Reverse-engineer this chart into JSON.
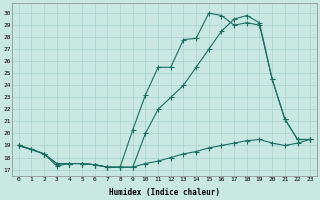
{
  "xlabel": "Humidex (Indice chaleur)",
  "x_ticks": [
    0,
    1,
    2,
    3,
    4,
    5,
    6,
    7,
    8,
    9,
    10,
    11,
    12,
    13,
    14,
    15,
    16,
    17,
    18,
    19,
    20,
    21,
    22,
    23
  ],
  "y_ticks": [
    17,
    18,
    19,
    20,
    21,
    22,
    23,
    24,
    25,
    26,
    27,
    28,
    29,
    30
  ],
  "ylim": [
    16.5,
    30.8
  ],
  "xlim": [
    -0.5,
    23.5
  ],
  "bg_color": "#c9e8e1",
  "grid_color": "#a8d4cc",
  "line_color": "#1a6e62",
  "line1_x": [
    0,
    1,
    2,
    3,
    4,
    5,
    6,
    7,
    8,
    9,
    10,
    11,
    12,
    13,
    14,
    15,
    16,
    17,
    18,
    19,
    20,
    21,
    22,
    23
  ],
  "line1_y": [
    19.0,
    18.7,
    18.3,
    17.3,
    17.5,
    17.5,
    17.4,
    17.2,
    17.2,
    17.2,
    17.5,
    17.7,
    18.0,
    18.3,
    18.5,
    18.8,
    19.0,
    19.2,
    19.4,
    19.5,
    19.2,
    19.0,
    19.2,
    19.5
  ],
  "line2_x": [
    0,
    1,
    2,
    3,
    4,
    5,
    6,
    7,
    8,
    9,
    10,
    11,
    12,
    13,
    14,
    15,
    16,
    17,
    18,
    19,
    20,
    21,
    22,
    23
  ],
  "line2_y": [
    19.0,
    18.7,
    18.3,
    17.5,
    17.5,
    17.5,
    17.4,
    17.2,
    17.2,
    20.3,
    23.2,
    25.5,
    25.5,
    27.8,
    27.9,
    30.0,
    29.8,
    29.0,
    29.2,
    29.0,
    24.5,
    21.2,
    19.5,
    19.5
  ],
  "line3_x": [
    0,
    2,
    3,
    4,
    5,
    6,
    7,
    8,
    9,
    10,
    11,
    12,
    13,
    14,
    15,
    16,
    17,
    18,
    19,
    20,
    21,
    22,
    23
  ],
  "line3_y": [
    19.0,
    18.3,
    17.5,
    17.5,
    17.5,
    17.4,
    17.2,
    17.2,
    17.2,
    20.0,
    22.0,
    23.0,
    24.0,
    25.5,
    27.0,
    28.5,
    29.5,
    29.8,
    29.2,
    24.5,
    21.2,
    19.5,
    19.5
  ]
}
